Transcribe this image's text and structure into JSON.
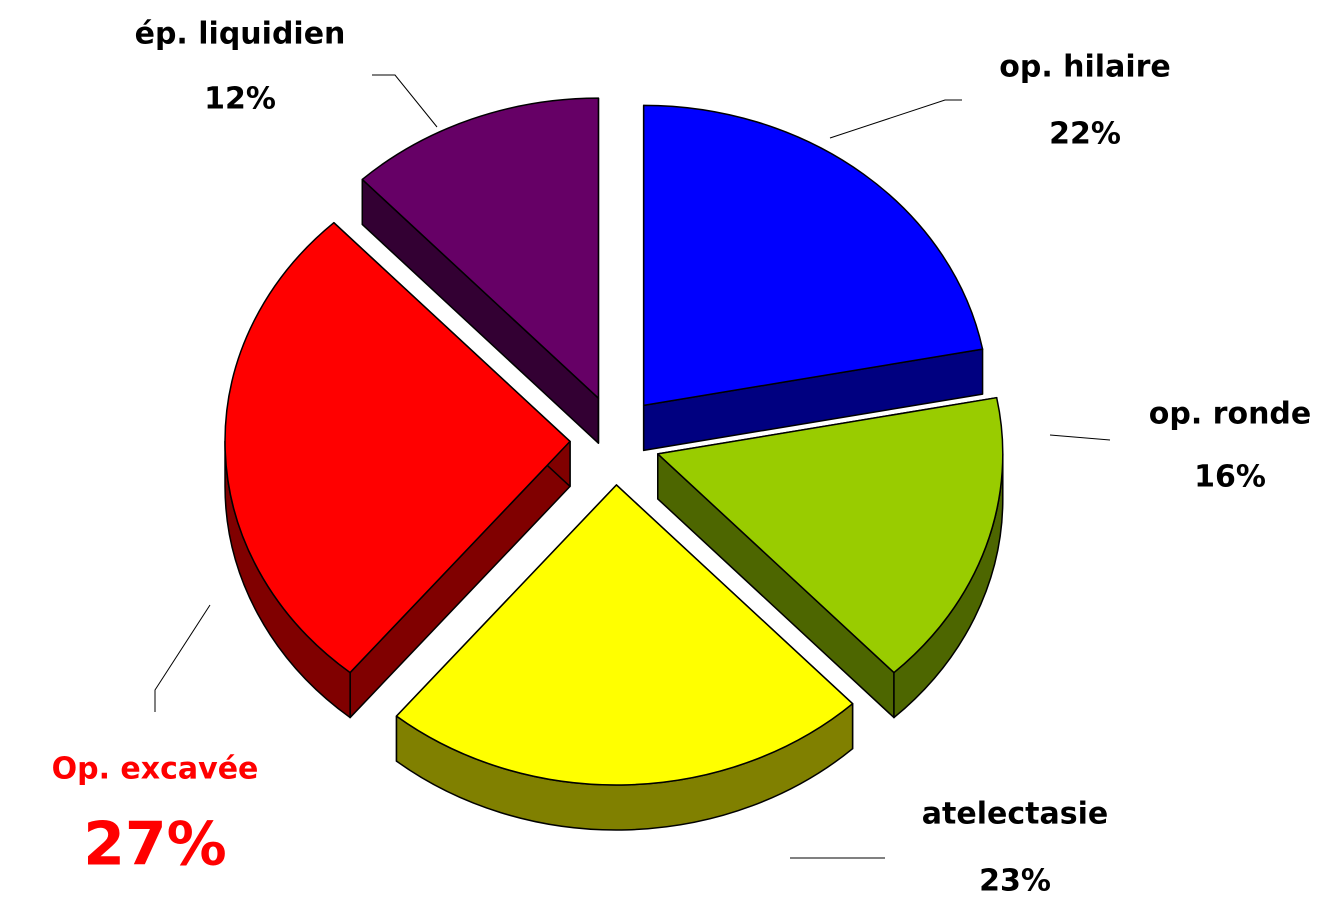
{
  "chart_data": {
    "type": "pie3d",
    "categories": [
      "op. hilaire",
      "op. ronde",
      "atelectasie",
      "Op. excavée",
      "ép. liquidien"
    ],
    "values": [
      22,
      16,
      23,
      27,
      12
    ],
    "value_labels": [
      "22%",
      "16%",
      "23%",
      "27%",
      "12%"
    ],
    "colors": [
      "#0000ff",
      "#99cc00",
      "#ffff00",
      "#ff0000",
      "#660066"
    ],
    "emphasis": [
      false,
      false,
      false,
      true,
      false
    ],
    "emphasis_color": "#ff0000",
    "exploded": true
  }
}
